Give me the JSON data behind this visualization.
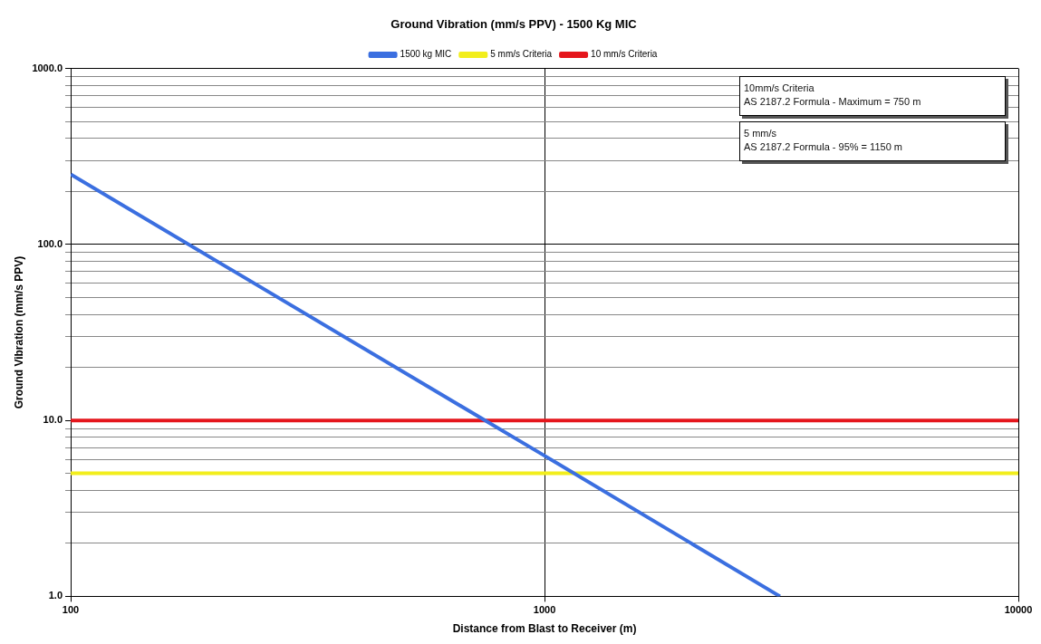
{
  "chart_data": {
    "type": "line",
    "title": "Ground Vibration (mm/s PPV) - 1500 Kg MIC",
    "xlabel": "Distance from Blast to Receiver (m)",
    "ylabel": "Ground Vibration (mm/s PPV)",
    "log": "xy",
    "xlim": [
      100,
      10000
    ],
    "ylim": [
      1,
      1000
    ],
    "xticks": [
      100,
      1000,
      10000
    ],
    "yticks": [
      {
        "value": 1,
        "label": "1.0"
      },
      {
        "value": 2,
        "label": null
      },
      {
        "value": 3,
        "label": null
      },
      {
        "value": 4,
        "label": null
      },
      {
        "value": 5,
        "label": null
      },
      {
        "value": 6,
        "label": null
      },
      {
        "value": 7,
        "label": null
      },
      {
        "value": 8,
        "label": null
      },
      {
        "value": 9,
        "label": null
      },
      {
        "value": 10,
        "label": "10.0"
      },
      {
        "value": 20,
        "label": null
      },
      {
        "value": 30,
        "label": null
      },
      {
        "value": 40,
        "label": null
      },
      {
        "value": 50,
        "label": null
      },
      {
        "value": 60,
        "label": null
      },
      {
        "value": 70,
        "label": null
      },
      {
        "value": 80,
        "label": null
      },
      {
        "value": 90,
        "label": null
      },
      {
        "value": 100,
        "label": "100.0"
      },
      {
        "value": 200,
        "label": null
      },
      {
        "value": 300,
        "label": null
      },
      {
        "value": 400,
        "label": null
      },
      {
        "value": 500,
        "label": null
      },
      {
        "value": 600,
        "label": null
      },
      {
        "value": 700,
        "label": null
      },
      {
        "value": 800,
        "label": null
      },
      {
        "value": 900,
        "label": null
      },
      {
        "value": 1000,
        "label": "1000.0"
      }
    ],
    "grid": true,
    "legend": "top",
    "marker": "none",
    "line_style": "solid",
    "series": [
      {
        "name": "1500 kg MIC",
        "color": "#3b6fe0",
        "x": [
          100,
          1000,
          3140
        ],
        "values": [
          250,
          6.3,
          1
        ]
      },
      {
        "name": "5 mm/s Criteria",
        "color": "#f2ee1c",
        "x": [
          100,
          10000
        ],
        "values": [
          5,
          5
        ]
      },
      {
        "name": "10 mm/s Criteria",
        "color": "#e5161c",
        "x": [
          100,
          10000
        ],
        "values": [
          10,
          10
        ]
      }
    ],
    "annotations": [
      "10mm/s Criteria\nAS 2187.2 Formula - Maximum = 750 m",
      "5 mm/s\nAS 2187.2 Formula - 95% = 1150 m"
    ]
  }
}
